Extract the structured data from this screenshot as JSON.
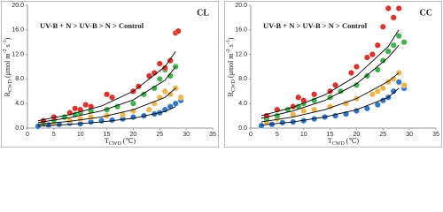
{
  "chart_data": [
    {
      "type": "scatter",
      "title": "CL",
      "annotation": "UV-B + N > UV-B > N > Control",
      "ylabel": [
        {
          "text": "R",
          "baseline": "normal"
        },
        {
          "text": "CWD",
          "baseline": "sub"
        },
        {
          "text": " (μmol m",
          "baseline": "normal"
        },
        {
          "text": "-2",
          "baseline": "super"
        },
        {
          "text": " s",
          "baseline": "normal"
        },
        {
          "text": "-1",
          "baseline": "super"
        },
        {
          "text": ")",
          "baseline": "normal"
        }
      ],
      "ylabel_color": "#c00000",
      "xlabel": [
        {
          "text": "T",
          "baseline": "normal"
        },
        {
          "text": "CWD",
          "baseline": "sub"
        },
        {
          "text": " (℃)",
          "baseline": "normal"
        }
      ],
      "xlim": [
        0,
        35
      ],
      "xticks": [
        0,
        5,
        10,
        15,
        20,
        25,
        30,
        35
      ],
      "ylim": [
        0,
        20
      ],
      "yticks": [
        {
          "value": 0,
          "label": "0.0"
        },
        {
          "value": 4,
          "label": "4.0"
        },
        {
          "value": 8,
          "label": "8.0"
        },
        {
          "value": 12,
          "label": "12.0"
        },
        {
          "value": 16,
          "label": "16.0"
        },
        {
          "value": 20,
          "label": "20.0"
        }
      ],
      "series": [
        {
          "color": "#2f75c9",
          "x": [
            2,
            4,
            6,
            8,
            10,
            12,
            14,
            16,
            18,
            20,
            22,
            24,
            25,
            26,
            27,
            28,
            29
          ],
          "values": [
            0.3,
            0.5,
            0.6,
            0.8,
            0.7,
            1.0,
            1.2,
            1.3,
            1.5,
            1.8,
            2.0,
            2.3,
            2.5,
            3.0,
            3.5,
            4.0,
            4.5
          ]
        },
        {
          "color": "#f0b54a",
          "x": [
            3,
            5,
            8,
            10,
            12,
            15,
            18,
            20,
            23,
            24,
            25,
            26,
            27,
            28,
            29
          ],
          "values": [
            0.7,
            0.9,
            1.2,
            1.5,
            1.8,
            2.0,
            2.2,
            2.8,
            3.0,
            4.0,
            5.0,
            6.0,
            5.5,
            6.5,
            5.0
          ]
        },
        {
          "color": "#3cb44b",
          "x": [
            3,
            5,
            7,
            9,
            10,
            12,
            15,
            17,
            20,
            22,
            24,
            25,
            26,
            27,
            28
          ],
          "values": [
            0.8,
            1.3,
            1.8,
            2.2,
            2.5,
            2.8,
            3.0,
            3.5,
            4.0,
            5.5,
            6.5,
            8.0,
            9.5,
            8.5,
            10.0
          ]
        },
        {
          "color": "#e0302a",
          "x": [
            3,
            5,
            8,
            9,
            10,
            11,
            12,
            15,
            16,
            20,
            21,
            23,
            24,
            25,
            26,
            27,
            28,
            28.5
          ],
          "values": [
            1.2,
            1.8,
            2.5,
            3.2,
            3.0,
            3.8,
            3.5,
            5.5,
            5.0,
            6.0,
            6.8,
            8.5,
            9.0,
            10.5,
            9.8,
            11.0,
            15.5,
            15.8
          ]
        }
      ],
      "curves": [
        {
          "color": "#000000",
          "x": [
            2,
            8,
            14,
            20,
            26,
            28
          ],
          "values": [
            1.2,
            2.2,
            3.6,
            6.0,
            10.0,
            12.5
          ]
        },
        {
          "color": "#000000",
          "x": [
            2,
            8,
            14,
            20,
            26,
            28
          ],
          "values": [
            0.9,
            1.7,
            2.8,
            4.6,
            7.8,
            10.0
          ]
        },
        {
          "color": "#000000",
          "x": [
            2,
            8,
            14,
            20,
            26,
            28
          ],
          "values": [
            0.6,
            1.1,
            1.8,
            3.0,
            5.0,
            6.5
          ]
        },
        {
          "color": "#000000",
          "x": [
            2,
            8,
            14,
            20,
            26,
            28
          ],
          "values": [
            0.3,
            0.6,
            1.0,
            1.6,
            2.7,
            3.5
          ]
        }
      ]
    },
    {
      "type": "scatter",
      "title": "CC",
      "annotation": "UV-B + N > UV-B > N > Control",
      "ylabel": [
        {
          "text": "R",
          "baseline": "normal"
        },
        {
          "text": "CWD",
          "baseline": "sub"
        },
        {
          "text": " (μmol m",
          "baseline": "normal"
        },
        {
          "text": "-2",
          "baseline": "super"
        },
        {
          "text": " s",
          "baseline": "normal"
        },
        {
          "text": "-1",
          "baseline": "super"
        },
        {
          "text": ")",
          "baseline": "normal"
        }
      ],
      "ylabel_color": "#c00000",
      "xlabel": [
        {
          "text": "T",
          "baseline": "normal"
        },
        {
          "text": "CWD",
          "baseline": "sub"
        },
        {
          "text": " (℃)",
          "baseline": "normal"
        }
      ],
      "xlim": [
        0,
        35
      ],
      "xticks": [
        0,
        5,
        10,
        15,
        20,
        25,
        30,
        35
      ],
      "ylim": [
        0,
        20
      ],
      "yticks": [
        {
          "value": 0,
          "label": "0.0"
        },
        {
          "value": 4,
          "label": "4.0"
        },
        {
          "value": 8,
          "label": "8.0"
        },
        {
          "value": 12,
          "label": "12.0"
        },
        {
          "value": 16,
          "label": "16.0"
        },
        {
          "value": 20,
          "label": "20.0"
        }
      ],
      "series": [
        {
          "color": "#2f75c9",
          "x": [
            2,
            4,
            6,
            8,
            10,
            12,
            14,
            16,
            18,
            20,
            22,
            24,
            25,
            26,
            27,
            28,
            29
          ],
          "values": [
            0.4,
            0.6,
            0.9,
            1.0,
            1.2,
            1.5,
            1.8,
            2.0,
            2.3,
            2.8,
            3.2,
            3.8,
            4.5,
            5.0,
            6.0,
            7.5,
            6.5
          ]
        },
        {
          "color": "#f0b54a",
          "x": [
            3,
            5,
            8,
            10,
            12,
            15,
            18,
            20,
            23,
            24,
            25,
            26,
            27,
            28,
            29
          ],
          "values": [
            1.0,
            1.5,
            2.2,
            2.8,
            3.0,
            3.5,
            4.0,
            4.8,
            5.5,
            6.0,
            6.5,
            7.5,
            8.0,
            9.0,
            7.0
          ]
        },
        {
          "color": "#3cb44b",
          "x": [
            3,
            5,
            7,
            9,
            10,
            12,
            15,
            17,
            20,
            22,
            24,
            25,
            26,
            27,
            28,
            29
          ],
          "values": [
            1.5,
            2.0,
            3.0,
            3.5,
            4.0,
            4.5,
            5.0,
            6.0,
            7.0,
            8.5,
            9.5,
            11.0,
            12.5,
            13.5,
            15.0,
            14.0
          ]
        },
        {
          "color": "#e0302a",
          "x": [
            3,
            5,
            8,
            9,
            10,
            12,
            15,
            16,
            19,
            20,
            22,
            23,
            24,
            25,
            26,
            27,
            28
          ],
          "values": [
            2.0,
            3.0,
            3.5,
            5.0,
            4.5,
            5.5,
            6.0,
            7.0,
            9.0,
            10.0,
            11.5,
            12.0,
            13.5,
            16.5,
            19.5,
            18.0,
            19.5
          ]
        }
      ],
      "curves": [
        {
          "color": "#000000",
          "x": [
            2,
            8,
            14,
            20,
            26,
            28
          ],
          "values": [
            2.0,
            3.4,
            5.4,
            8.5,
            13.3,
            16.0
          ]
        },
        {
          "color": "#000000",
          "x": [
            2,
            8,
            14,
            20,
            26,
            28
          ],
          "values": [
            1.6,
            2.8,
            4.5,
            7.2,
            11.5,
            13.5
          ]
        },
        {
          "color": "#000000",
          "x": [
            2,
            8,
            14,
            20,
            26,
            28
          ],
          "values": [
            1.0,
            1.8,
            3.0,
            4.8,
            7.6,
            9.0
          ]
        },
        {
          "color": "#000000",
          "x": [
            2,
            8,
            14,
            20,
            26,
            28
          ],
          "values": [
            0.5,
            1.0,
            1.8,
            3.0,
            5.0,
            6.5
          ]
        }
      ]
    }
  ]
}
